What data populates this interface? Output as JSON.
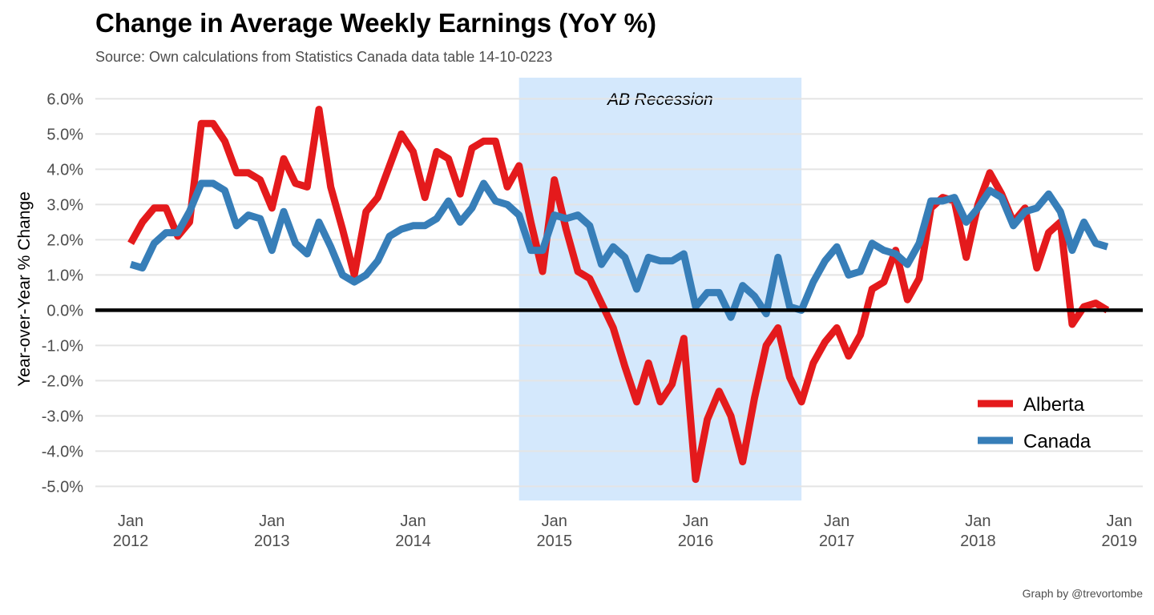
{
  "chart_data": {
    "type": "line",
    "title": "Change in Average Weekly Earnings (YoY %)",
    "subtitle": "Source: Own calculations from Statistics Canada data table 14-10-0223",
    "caption": "Graph by @trevortombe",
    "ylabel": "Year-over-Year % Change",
    "xlabel": "",
    "ylim": [
      -5.4,
      6.6
    ],
    "xlim": [
      "2011-10",
      "2019-03"
    ],
    "y_ticks": [
      6,
      5,
      4,
      3,
      2,
      1,
      0,
      -1,
      -2,
      -3,
      -4,
      -5
    ],
    "y_tick_labels": [
      "6.0%",
      "5.0%",
      "4.0%",
      "3.0%",
      "2.0%",
      "1.0%",
      "0.0%",
      "-1.0%",
      "-2.0%",
      "-3.0%",
      "-4.0%",
      "-5.0%"
    ],
    "x_ticks": [
      {
        "date": "2012-01",
        "month": "Jan",
        "year": "2012"
      },
      {
        "date": "2013-01",
        "month": "Jan",
        "year": "2013"
      },
      {
        "date": "2014-01",
        "month": "Jan",
        "year": "2014"
      },
      {
        "date": "2015-01",
        "month": "Jan",
        "year": "2015"
      },
      {
        "date": "2016-01",
        "month": "Jan",
        "year": "2016"
      },
      {
        "date": "2017-01",
        "month": "Jan",
        "year": "2017"
      },
      {
        "date": "2018-01",
        "month": "Jan",
        "year": "2018"
      },
      {
        "date": "2019-01",
        "month": "Jan",
        "year": "2019"
      }
    ],
    "grid": "horizontal",
    "zero_line": true,
    "legend_position": "bottom-right",
    "shaded_region": {
      "start": "2014-10",
      "end": "2016-10",
      "label": "AB Recession",
      "color": "#d4e8fc"
    },
    "series": [
      {
        "name": "Alberta",
        "color": "#e41a1c",
        "x": [
          "2012-01",
          "2012-02",
          "2012-03",
          "2012-04",
          "2012-05",
          "2012-06",
          "2012-07",
          "2012-08",
          "2012-09",
          "2012-10",
          "2012-11",
          "2012-12",
          "2013-01",
          "2013-02",
          "2013-03",
          "2013-04",
          "2013-05",
          "2013-06",
          "2013-07",
          "2013-08",
          "2013-09",
          "2013-10",
          "2013-11",
          "2013-12",
          "2014-01",
          "2014-02",
          "2014-03",
          "2014-04",
          "2014-05",
          "2014-06",
          "2014-07",
          "2014-08",
          "2014-09",
          "2014-10",
          "2014-11",
          "2014-12",
          "2015-01",
          "2015-02",
          "2015-03",
          "2015-04",
          "2015-05",
          "2015-06",
          "2015-07",
          "2015-08",
          "2015-09",
          "2015-10",
          "2015-11",
          "2015-12",
          "2016-01",
          "2016-02",
          "2016-03",
          "2016-04",
          "2016-05",
          "2016-06",
          "2016-07",
          "2016-08",
          "2016-09",
          "2016-10",
          "2016-11",
          "2016-12",
          "2017-01",
          "2017-02",
          "2017-03",
          "2017-04",
          "2017-05",
          "2017-06",
          "2017-07",
          "2017-08",
          "2017-09",
          "2017-10",
          "2017-11",
          "2017-12",
          "2018-01",
          "2018-02",
          "2018-03",
          "2018-04",
          "2018-05",
          "2018-06",
          "2018-07",
          "2018-08",
          "2018-09",
          "2018-10",
          "2018-11",
          "2018-12"
        ],
        "values": [
          1.9,
          2.5,
          2.9,
          2.9,
          2.1,
          2.5,
          5.3,
          5.3,
          4.8,
          3.9,
          3.9,
          3.7,
          2.9,
          4.3,
          3.6,
          3.5,
          5.7,
          3.5,
          2.3,
          1.0,
          2.8,
          3.2,
          4.1,
          5.0,
          4.5,
          3.2,
          4.5,
          4.3,
          3.3,
          4.6,
          4.8,
          4.8,
          3.5,
          4.1,
          2.5,
          1.1,
          3.7,
          2.3,
          1.1,
          0.9,
          0.2,
          -0.5,
          -1.6,
          -2.6,
          -1.5,
          -2.6,
          -2.1,
          -0.8,
          -4.8,
          -3.1,
          -2.3,
          -3.0,
          -4.3,
          -2.5,
          -1.0,
          -0.5,
          -1.9,
          -2.6,
          -1.5,
          -0.9,
          -0.5,
          -1.3,
          -0.7,
          0.6,
          0.8,
          1.7,
          0.3,
          0.9,
          2.9,
          3.2,
          3.1,
          1.5,
          3.0,
          3.9,
          3.3,
          2.5,
          2.9,
          1.2,
          2.2,
          2.5,
          -0.4,
          0.1,
          0.2,
          0.0
        ]
      },
      {
        "name": "Canada",
        "color": "#377eb8",
        "x": [
          "2012-01",
          "2012-02",
          "2012-03",
          "2012-04",
          "2012-05",
          "2012-06",
          "2012-07",
          "2012-08",
          "2012-09",
          "2012-10",
          "2012-11",
          "2012-12",
          "2013-01",
          "2013-02",
          "2013-03",
          "2013-04",
          "2013-05",
          "2013-06",
          "2013-07",
          "2013-08",
          "2013-09",
          "2013-10",
          "2013-11",
          "2013-12",
          "2014-01",
          "2014-02",
          "2014-03",
          "2014-04",
          "2014-05",
          "2014-06",
          "2014-07",
          "2014-08",
          "2014-09",
          "2014-10",
          "2014-11",
          "2014-12",
          "2015-01",
          "2015-02",
          "2015-03",
          "2015-04",
          "2015-05",
          "2015-06",
          "2015-07",
          "2015-08",
          "2015-09",
          "2015-10",
          "2015-11",
          "2015-12",
          "2016-01",
          "2016-02",
          "2016-03",
          "2016-04",
          "2016-05",
          "2016-06",
          "2016-07",
          "2016-08",
          "2016-09",
          "2016-10",
          "2016-11",
          "2016-12",
          "2017-01",
          "2017-02",
          "2017-03",
          "2017-04",
          "2017-05",
          "2017-06",
          "2017-07",
          "2017-08",
          "2017-09",
          "2017-10",
          "2017-11",
          "2017-12",
          "2018-01",
          "2018-02",
          "2018-03",
          "2018-04",
          "2018-05",
          "2018-06",
          "2018-07",
          "2018-08",
          "2018-09",
          "2018-10",
          "2018-11",
          "2018-12"
        ],
        "values": [
          1.3,
          1.2,
          1.9,
          2.2,
          2.2,
          2.8,
          3.6,
          3.6,
          3.4,
          2.4,
          2.7,
          2.6,
          1.7,
          2.8,
          1.9,
          1.6,
          2.5,
          1.8,
          1.0,
          0.8,
          1.0,
          1.4,
          2.1,
          2.3,
          2.4,
          2.4,
          2.6,
          3.1,
          2.5,
          2.9,
          3.6,
          3.1,
          3.0,
          2.7,
          1.7,
          1.7,
          2.7,
          2.6,
          2.7,
          2.4,
          1.3,
          1.8,
          1.5,
          0.6,
          1.5,
          1.4,
          1.4,
          1.6,
          0.1,
          0.5,
          0.5,
          -0.2,
          0.7,
          0.4,
          -0.1,
          1.5,
          0.1,
          0.0,
          0.8,
          1.4,
          1.8,
          1.0,
          1.1,
          1.9,
          1.7,
          1.6,
          1.3,
          1.9,
          3.1,
          3.1,
          3.2,
          2.5,
          2.9,
          3.4,
          3.2,
          2.4,
          2.8,
          2.9,
          3.3,
          2.8,
          1.7,
          2.5,
          1.9,
          1.8
        ]
      }
    ]
  }
}
